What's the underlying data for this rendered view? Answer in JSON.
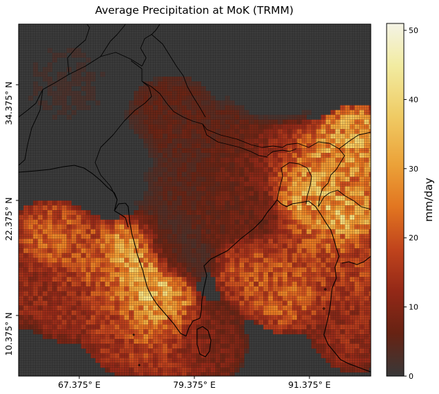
{
  "title": "Average Precipitation at MoK (TRMM)",
  "colorbar": {
    "label": "mm/day",
    "min": 0,
    "max": 51,
    "ticks": [
      0,
      10,
      20,
      30,
      40,
      50
    ],
    "tick_labels": [
      "0",
      "10",
      "20",
      "30",
      "40",
      "50"
    ],
    "colormap": "afmhot",
    "colors": [
      "#3b3b3b",
      "#6b2414",
      "#9a2a18",
      "#c9471e",
      "#ec7b22",
      "#f6a93b",
      "#fad56a",
      "#fdf6a8",
      "#fffef0"
    ]
  },
  "axes": {
    "x_ticks": [
      67.375,
      79.375,
      91.375
    ],
    "x_tick_labels": [
      "67.375° E",
      "79.375° E",
      "91.375° E"
    ],
    "y_ticks": [
      34.375,
      22.375,
      10.375
    ],
    "y_tick_labels": [
      "34.375° N",
      "22.375° N",
      "10.375° N"
    ]
  },
  "map": {
    "lon_range": [
      61.5,
      98.2
    ],
    "lat_range": [
      4.5,
      41.4
    ],
    "background_color": "#3b3b3b",
    "gridline_color": "#141414",
    "coastline_color": "#000000",
    "cell_size_deg": 0.25
  },
  "chart_data": {
    "type": "heatmap",
    "title": "Average Precipitation at MoK (TRMM)",
    "xlabel": "",
    "ylabel": "",
    "colorbar_label": "mm/day",
    "value_range": [
      0,
      51
    ],
    "x_range": [
      61.5,
      98.2
    ],
    "y_range": [
      4.5,
      41.4
    ],
    "x_tick_labels": [
      "67.375° E",
      "79.375° E",
      "91.375° E"
    ],
    "y_tick_labels": [
      "34.375° N",
      "22.375° N",
      "10.375° N"
    ],
    "regions": [
      {
        "lon": 65.0,
        "lat": 18.5,
        "value": 22
      },
      {
        "lon": 68.5,
        "lat": 16.5,
        "value": 20
      },
      {
        "lon": 71.0,
        "lat": 15.0,
        "value": 24
      },
      {
        "lon": 73.5,
        "lat": 16.5,
        "value": 34
      },
      {
        "lon": 74.5,
        "lat": 13.5,
        "value": 38
      },
      {
        "lon": 75.3,
        "lat": 11.5,
        "value": 32
      },
      {
        "lon": 76.0,
        "lat": 9.5,
        "value": 25
      },
      {
        "lon": 71.5,
        "lat": 12.0,
        "value": 18
      },
      {
        "lon": 67.0,
        "lat": 12.5,
        "value": 14
      },
      {
        "lon": 73.0,
        "lat": 9.0,
        "value": 16
      },
      {
        "lon": 78.0,
        "lat": 7.0,
        "value": 14
      },
      {
        "lon": 80.7,
        "lat": 7.8,
        "value": 10
      },
      {
        "lon": 86.5,
        "lat": 15.5,
        "value": 20
      },
      {
        "lon": 89.5,
        "lat": 13.5,
        "value": 22
      },
      {
        "lon": 91.5,
        "lat": 17.5,
        "value": 18
      },
      {
        "lon": 93.5,
        "lat": 20.0,
        "value": 24
      },
      {
        "lon": 94.3,
        "lat": 22.0,
        "value": 40
      },
      {
        "lon": 93.0,
        "lat": 22.6,
        "value": 30
      },
      {
        "lon": 91.5,
        "lat": 25.4,
        "value": 36
      },
      {
        "lon": 92.8,
        "lat": 25.6,
        "value": 26
      },
      {
        "lon": 95.8,
        "lat": 27.4,
        "value": 30
      },
      {
        "lon": 97.0,
        "lat": 28.3,
        "value": 32
      },
      {
        "lon": 95.5,
        "lat": 24.8,
        "value": 24
      },
      {
        "lon": 89.0,
        "lat": 26.8,
        "value": 15
      },
      {
        "lon": 85.5,
        "lat": 27.0,
        "value": 9
      },
      {
        "lon": 83.0,
        "lat": 28.5,
        "value": 6
      },
      {
        "lon": 85.5,
        "lat": 21.5,
        "value": 8
      },
      {
        "lon": 82.0,
        "lat": 22.5,
        "value": 7
      },
      {
        "lon": 79.0,
        "lat": 24.5,
        "value": 5
      },
      {
        "lon": 77.5,
        "lat": 31.5,
        "value": 6
      },
      {
        "lon": 66.5,
        "lat": 35.0,
        "value": 2
      },
      {
        "lon": 72.0,
        "lat": 27.0,
        "value": 1
      },
      {
        "lon": 77.0,
        "lat": 18.0,
        "value": 4
      },
      {
        "lon": 88.0,
        "lat": 35.0,
        "value": 1
      },
      {
        "lon": 96.5,
        "lat": 9.5,
        "value": 14
      },
      {
        "lon": 97.0,
        "lat": 15.5,
        "value": 18
      },
      {
        "lon": 62.5,
        "lat": 14.0,
        "value": 13
      }
    ]
  }
}
